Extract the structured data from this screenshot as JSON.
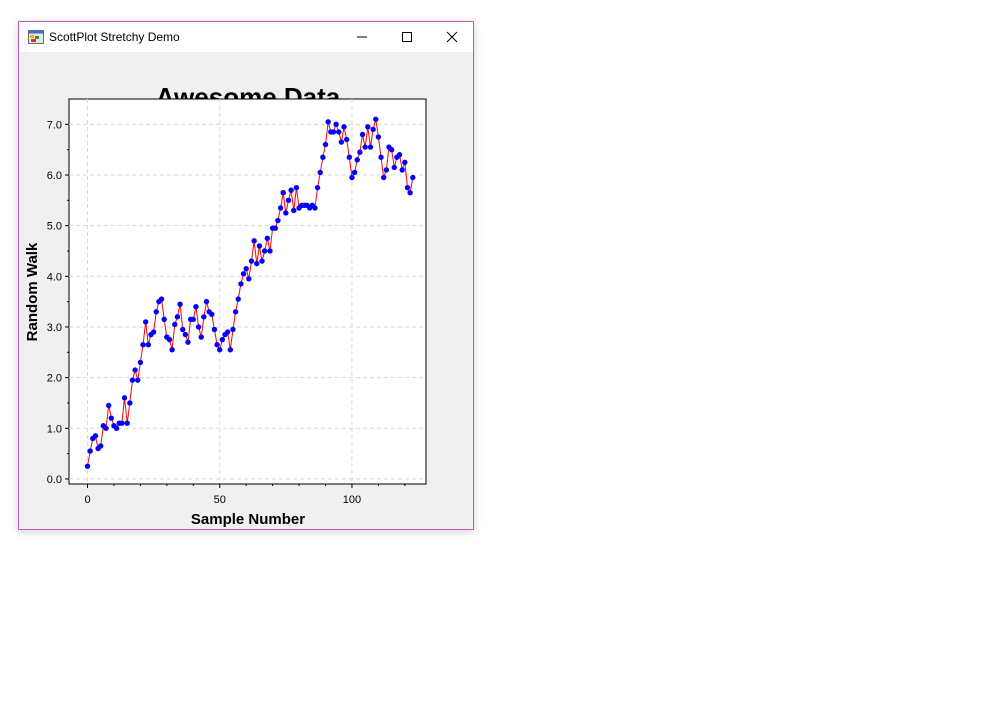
{
  "window": {
    "title": "ScottPlot Stretchy Demo",
    "icon": "app-icon",
    "controls": [
      "minimize-icon",
      "maximize-icon",
      "close-icon"
    ]
  },
  "chart_data": {
    "type": "scatter",
    "title": "Awesome Data",
    "xlabel": "Sample Number",
    "ylabel": "Random Walk",
    "xlim": [
      -7,
      128
    ],
    "ylim": [
      -0.1,
      7.5
    ],
    "xticks": [
      0,
      50,
      100
    ],
    "xtick_labels": [
      "0",
      "50",
      "100"
    ],
    "yticks": [
      0,
      1,
      2,
      3,
      4,
      5,
      6,
      7
    ],
    "ytick_labels": [
      "0.0",
      "1.0",
      "2.0",
      "3.0",
      "4.0",
      "5.0",
      "6.0",
      "7.0"
    ],
    "grid": true,
    "colors": {
      "line": "#ff0000",
      "marker": "#0000ff"
    },
    "series": [
      {
        "y": [
          0.25,
          0.55,
          0.8,
          0.85,
          0.6,
          0.65,
          1.05,
          1.0,
          1.45,
          1.2,
          1.05,
          1.0,
          1.1,
          1.1,
          1.6,
          1.1,
          1.5,
          1.95,
          2.15,
          1.95,
          2.3,
          2.65,
          3.1,
          2.65,
          2.85,
          2.9,
          3.3,
          3.5,
          3.55,
          3.15,
          2.8,
          2.75,
          2.55,
          3.05,
          3.2,
          3.45,
          2.95,
          2.85,
          2.7,
          3.15,
          3.15,
          3.4,
          3.0,
          2.8,
          3.2,
          3.5,
          3.3,
          3.25,
          2.95,
          2.65,
          2.55,
          2.75,
          2.85,
          2.9,
          2.55,
          2.95,
          3.3,
          3.55,
          3.85,
          4.05,
          4.15,
          3.95,
          4.3,
          4.7,
          4.25,
          4.6,
          4.3,
          4.5,
          4.75,
          4.5,
          4.95,
          4.95,
          5.1,
          5.35,
          5.65,
          5.25,
          5.5,
          5.7,
          5.3,
          5.75,
          5.35,
          5.4,
          5.4,
          5.4,
          5.35,
          5.4,
          5.35,
          5.75,
          6.05,
          6.35,
          6.6,
          7.05,
          6.85,
          6.85,
          7.0,
          6.85,
          6.65,
          6.95,
          6.7,
          6.35,
          5.95,
          6.05,
          6.3,
          6.45,
          6.8,
          6.55,
          6.95,
          6.55,
          6.9,
          7.1,
          6.75,
          6.35,
          5.95,
          6.1,
          6.55,
          6.5,
          6.15,
          6.35,
          6.4,
          6.1,
          6.25,
          5.75,
          5.65,
          5.95
        ]
      }
    ]
  }
}
